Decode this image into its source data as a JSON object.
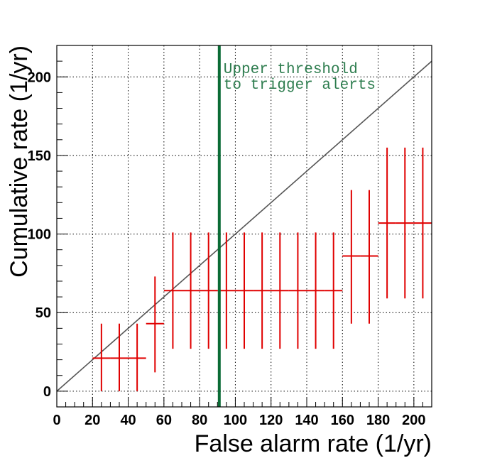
{
  "chart_data": {
    "type": "scatter",
    "title": "",
    "xlabel": "False alarm rate (1/yr)",
    "ylabel": "Cumulative rate (1/yr)",
    "xlim": [
      0,
      210
    ],
    "ylim": [
      -10,
      220
    ],
    "x_ticks": [
      0,
      20,
      40,
      60,
      80,
      100,
      120,
      140,
      160,
      180,
      200
    ],
    "y_ticks": [
      0,
      50,
      100,
      150,
      200
    ],
    "x_tick_labels": [
      "0",
      "20",
      "40",
      "60",
      "80",
      "100",
      "120",
      "140",
      "160",
      "180",
      "200"
    ],
    "y_tick_labels": [
      "0",
      "50",
      "100",
      "150",
      "200"
    ],
    "grid": true,
    "colors": {
      "points": "#e00000",
      "diagonal": "#555555",
      "threshold": "#0a6b35",
      "annotation": "#2e7d4f"
    },
    "threshold": {
      "x": 91,
      "label_line1": "Upper threshold",
      "label_line2": "to trigger alerts"
    },
    "diagonal": {
      "x": [
        0,
        210
      ],
      "y": [
        0,
        210
      ]
    },
    "series": [
      {
        "points": [
          {
            "x": 25,
            "y": 21,
            "ylow": 0,
            "yhigh": 43
          },
          {
            "x": 35,
            "y": 21,
            "ylow": 0,
            "yhigh": 43
          },
          {
            "x": 45,
            "y": 21,
            "ylow": 0,
            "yhigh": 43
          },
          {
            "x": 55,
            "y": 43,
            "ylow": 12,
            "yhigh": 73
          },
          {
            "x": 65,
            "y": 64,
            "ylow": 27,
            "yhigh": 101
          },
          {
            "x": 75,
            "y": 64,
            "ylow": 27,
            "yhigh": 101
          },
          {
            "x": 85,
            "y": 64,
            "ylow": 27,
            "yhigh": 101
          },
          {
            "x": 95,
            "y": 64,
            "ylow": 27,
            "yhigh": 101
          },
          {
            "x": 105,
            "y": 64,
            "ylow": 27,
            "yhigh": 101
          },
          {
            "x": 115,
            "y": 64,
            "ylow": 27,
            "yhigh": 101
          },
          {
            "x": 125,
            "y": 64,
            "ylow": 27,
            "yhigh": 101
          },
          {
            "x": 135,
            "y": 64,
            "ylow": 27,
            "yhigh": 101
          },
          {
            "x": 145,
            "y": 64,
            "ylow": 27,
            "yhigh": 101
          },
          {
            "x": 155,
            "y": 64,
            "ylow": 27,
            "yhigh": 101
          },
          {
            "x": 165,
            "y": 86,
            "ylow": 43,
            "yhigh": 128
          },
          {
            "x": 175,
            "y": 86,
            "ylow": 43,
            "yhigh": 128
          },
          {
            "x": 185,
            "y": 107,
            "ylow": 59,
            "yhigh": 155
          },
          {
            "x": 195,
            "y": 107,
            "ylow": 59,
            "yhigh": 155
          },
          {
            "x": 205,
            "y": 107,
            "ylow": 59,
            "yhigh": 155
          }
        ],
        "x_half_width": 5
      }
    ]
  }
}
